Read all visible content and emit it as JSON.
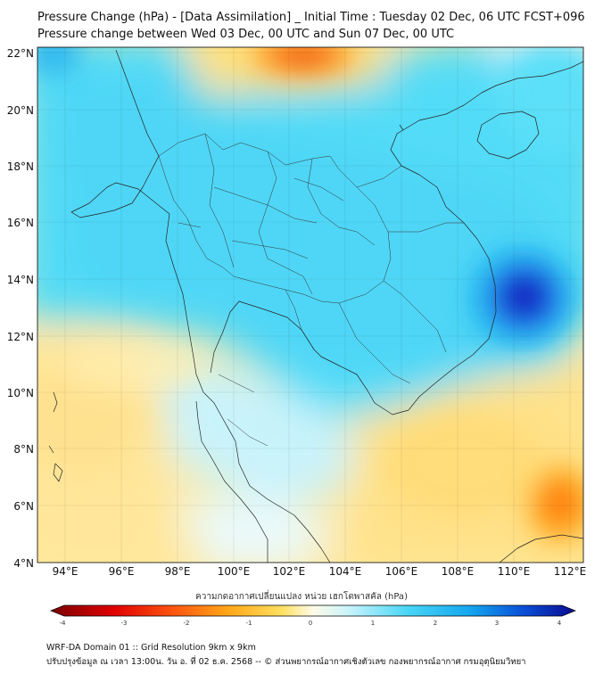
{
  "title_line1": "Pressure Change (hPa) - [Data Assimilation] _ Initial Time : Tuesday 02 Dec, 06 UTC FCST+096",
  "title_line2": "Pressure change between Wed 03 Dec, 00 UTC and Sun 07 Dec, 00 UTC",
  "map": {
    "lat_ticks": [
      "4°N",
      "6°N",
      "8°N",
      "10°N",
      "12°N",
      "14°N",
      "16°N",
      "18°N",
      "20°N",
      "22°N"
    ],
    "lon_ticks": [
      "94°E",
      "96°E",
      "98°E",
      "100°E",
      "102°E",
      "104°E",
      "106°E",
      "108°E",
      "110°E",
      "112°E"
    ]
  },
  "colorbar": {
    "label": "ความกดอากาศเปลี่ยนแปลง หน่วย เฮกโตพาสคัล (hPa)",
    "ticks": [
      "-4",
      "-3",
      "-2",
      "-1",
      "0",
      "1",
      "2",
      "3",
      "4"
    ],
    "colors": {
      "neg_strong": "#7a0000",
      "neg": "#e83a1a",
      "neg_mid": "#ff9a10",
      "neg_weak": "#ffd740",
      "neutral": "#fffbe8",
      "pos_weak": "#c6f3fb",
      "pos": "#3fd3f5",
      "pos_mid": "#14a6ee",
      "pos_strong": "#0a0aa6"
    }
  },
  "footer": {
    "line1": "WRF-DA Domain 01 :: Grid Resolution 9km x 9km",
    "line2": "ปรับปรุงข้อมูล ณ เวลา 13:00น. วัน อ. ที่ 02 ธ.ค. 2568 -- © ส่วนพยากรณ์อากาศเชิงตัวเลข กองพยากรณ์อากาศ กรมอุตุนิยมวิทยา"
  }
}
